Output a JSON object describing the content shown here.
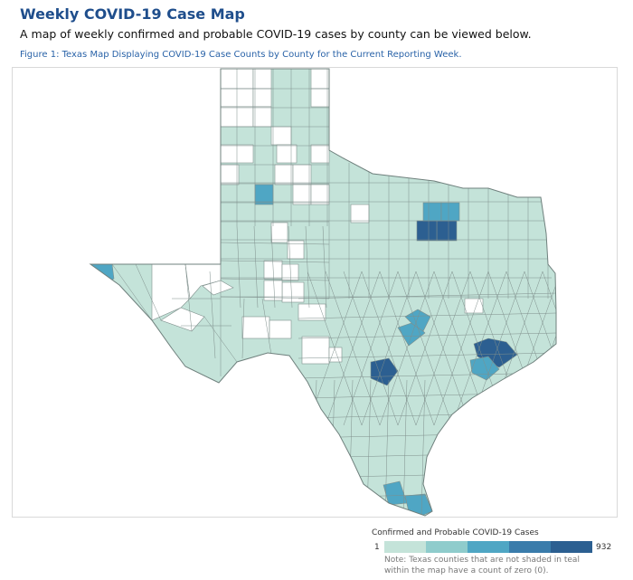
{
  "header": {
    "title": "Weekly COVID-19 Case Map",
    "subtitle": "A map of weekly confirmed and probable COVID-19 cases by county can be viewed below.",
    "figure_caption": "Figure 1: Texas Map Displaying COVID-19 Case Counts by County for the Current Reporting Week."
  },
  "legend": {
    "title": "Confirmed and Probable COVID-19 Cases",
    "min_label": "1",
    "max_label": "932",
    "scale_colors": [
      "#c4e3d9",
      "#8fcccc",
      "#4fa6c4",
      "#3a7cab",
      "#2c5f91"
    ],
    "note_line1": "Note: Texas counties that are not shaded in teal",
    "note_line2": "within the map have a count of zero (0)."
  },
  "map": {
    "base_fill": "#c4e3d9",
    "zero_fill": "#ffffff",
    "border_color": "#7f8f8c",
    "hotspots": [
      {
        "name": "dallas",
        "level": 4
      },
      {
        "name": "tarrant",
        "level": 4
      },
      {
        "name": "denton",
        "level": 2
      },
      {
        "name": "collin",
        "level": 2
      },
      {
        "name": "travis",
        "level": 2
      },
      {
        "name": "williamson",
        "level": 2
      },
      {
        "name": "bexar",
        "level": 4
      },
      {
        "name": "harris",
        "level": 4
      },
      {
        "name": "fort-bend",
        "level": 2
      },
      {
        "name": "hidalgo",
        "level": 2
      },
      {
        "name": "cameron",
        "level": 2
      },
      {
        "name": "lubbock",
        "level": 2
      },
      {
        "name": "el-paso",
        "level": 2
      }
    ]
  }
}
